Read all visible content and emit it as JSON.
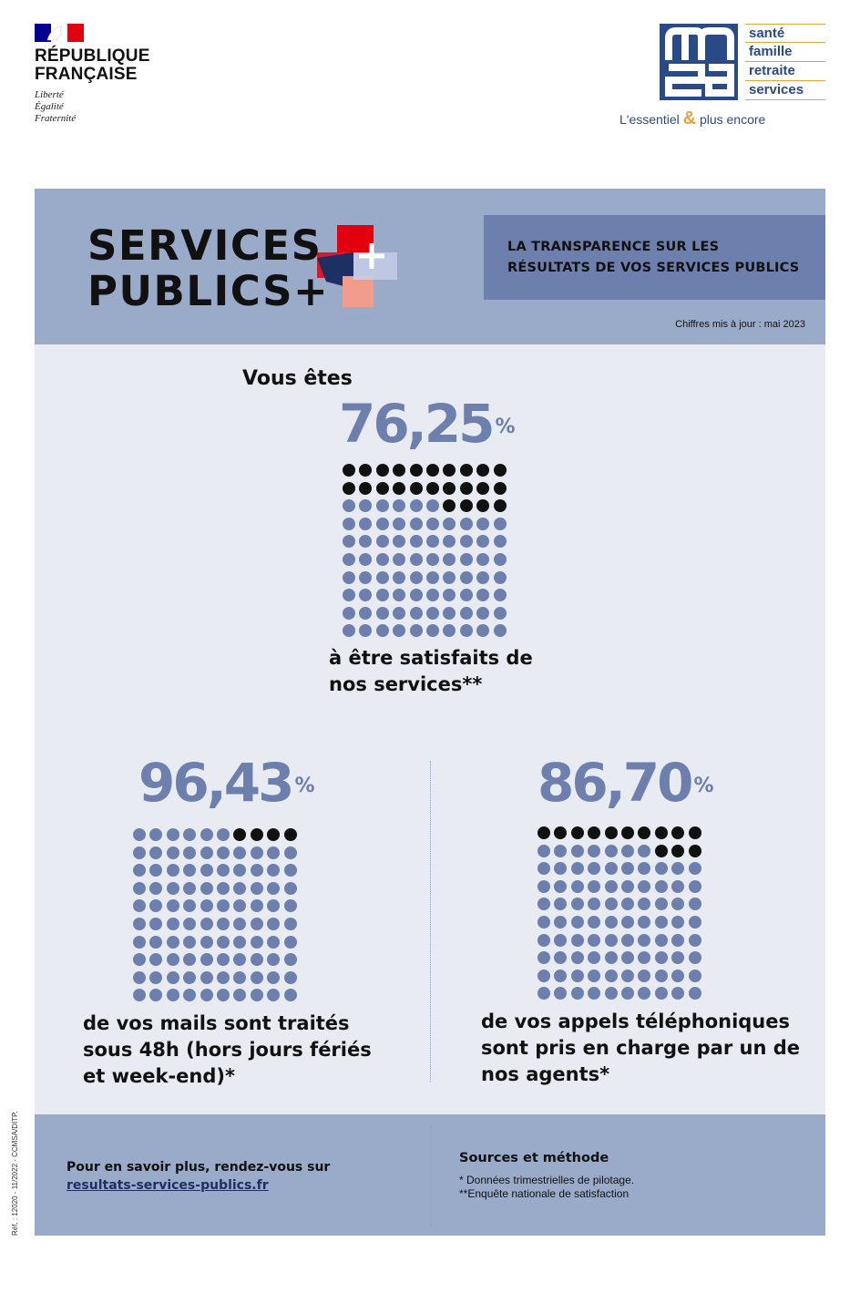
{
  "header": {
    "republique": {
      "line1": "RÉPUBLIQUE",
      "line2": "FRANÇAISE",
      "motto": [
        "Liberté",
        "Égalité",
        "Fraternité"
      ]
    },
    "msa": {
      "words": [
        "santé",
        "famille",
        "retraite",
        "services"
      ],
      "tagline_before": "L'essentiel",
      "tagline_amp": "&",
      "tagline_after": "plus encore",
      "brand_color": "#2a4a86",
      "accent_color": "#e8a33d"
    }
  },
  "hero": {
    "title_line1": "SERVICES",
    "title_line2": "PUBLICS",
    "title_plus": "+",
    "banner_line1": "LA TRANSPARENCE SUR LES",
    "banner_line2": "RÉSULTATS DE VOS SERVICES PUBLICS",
    "update": "Chiffres mis à jour : mai 2023"
  },
  "stats": {
    "satisfaction": {
      "intro": "Vous êtes",
      "value": "76,25",
      "unit": "%",
      "caption_line1": "à être satisfaits de",
      "caption_line2": "nos services**",
      "fraction": 0.7625
    },
    "mails": {
      "value": "96,43",
      "unit": "%",
      "caption_line1": "de vos mails sont traités",
      "caption_line2": "sous 48h (hors jours fériés",
      "caption_line3": "et week-end)*",
      "fraction": 0.9643
    },
    "calls": {
      "value": "86,70",
      "unit": "%",
      "caption_line1": "de vos appels téléphoniques",
      "caption_line2": "sont pris en charge par un de",
      "caption_line3": "nos agents*",
      "fraction": 0.867
    }
  },
  "footer": {
    "more": "Pour en savoir plus, rendez-vous sur",
    "link": "resultats-services-publics.fr",
    "sources_title": "Sources et méthode",
    "note1": "* Données trimestrielles de pilotage.",
    "note2": "**Enquête nationale de satisfaction"
  },
  "reference": "Réf. : 12020 - 11/2022 - CCMSA/DITP.",
  "colors": {
    "panel": "#9aaac9",
    "banner": "#6d7fad",
    "dot_filled": "#6d7fad",
    "dot_empty": "#111111",
    "background": "#e8ebf1"
  }
}
